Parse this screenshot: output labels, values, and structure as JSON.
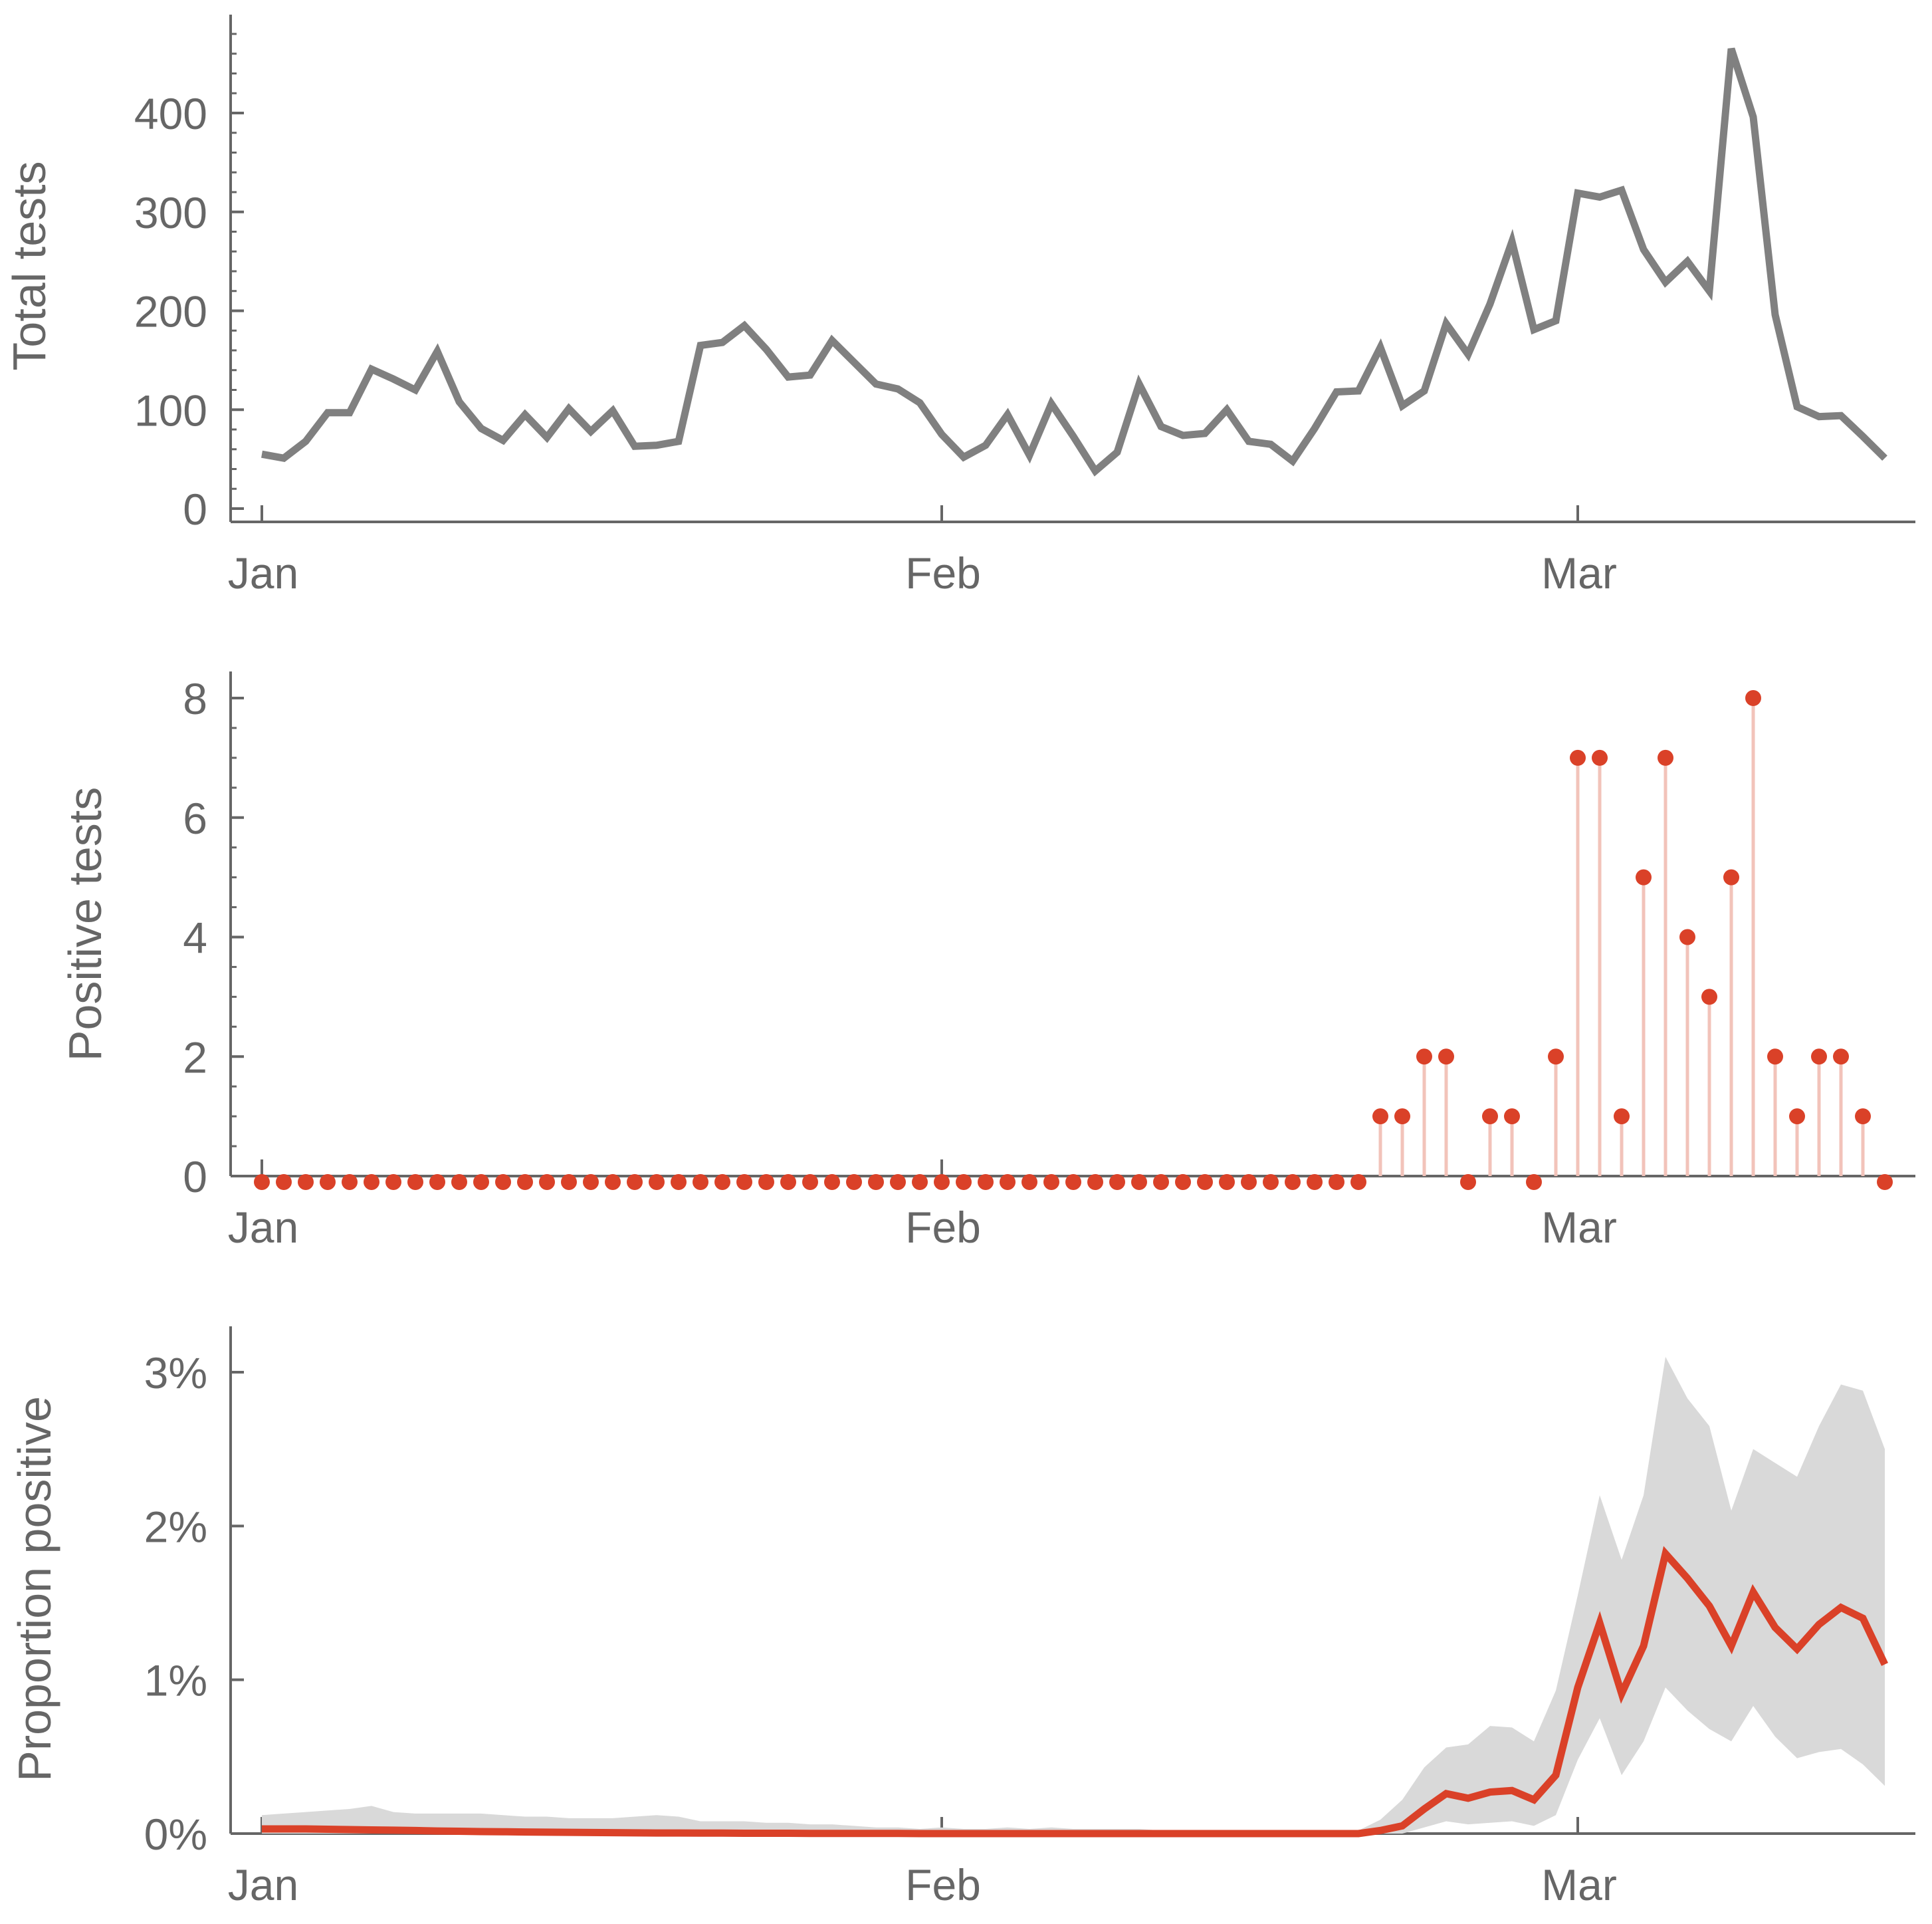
{
  "style": {
    "axis_color": "#666666",
    "total_line_color": "#808080",
    "positive_color": "#DA4128",
    "stem_color": "#F2C3BA",
    "band_color": "#D9D9D9",
    "proportion_line_color": "#DA4128"
  },
  "chart_data": [
    {
      "type": "line",
      "title": "",
      "xlabel": "",
      "ylabel": "Total tests",
      "x_ticks": [
        "Jan",
        "Feb",
        "Mar"
      ],
      "x_tick_days": [
        0,
        31,
        60
      ],
      "y_ticks": [
        "0",
        "100",
        "200",
        "300",
        "400"
      ],
      "y_tick_values": [
        0,
        100,
        200,
        300,
        400
      ],
      "ylim": [
        0,
        500
      ],
      "xlim_days": [
        0,
        74
      ],
      "series": [
        {
          "x_days": [
            0,
            1,
            2,
            3,
            4,
            5,
            6,
            7,
            8,
            9,
            10,
            11,
            12,
            13,
            14,
            15,
            16,
            17,
            18,
            19,
            20,
            21,
            22,
            23,
            24,
            25,
            26,
            27,
            28,
            29,
            30,
            31,
            32,
            33,
            34,
            35,
            36,
            37,
            38,
            39,
            40,
            41,
            42,
            43,
            44,
            45,
            46,
            47,
            48,
            49,
            50,
            51,
            52,
            53,
            54,
            55,
            56,
            57,
            58,
            59,
            60,
            61,
            62,
            63,
            64,
            65,
            66,
            67,
            68,
            69,
            70,
            71,
            72,
            73,
            74
          ],
          "values": [
            55,
            51,
            68,
            97,
            97,
            141,
            131,
            120,
            159,
            108,
            81,
            69,
            95,
            72,
            101,
            78,
            99,
            63,
            64,
            68,
            165,
            168,
            185,
            161,
            133,
            135,
            170,
            148,
            126,
            121,
            107,
            75,
            52,
            64,
            95,
            54,
            106,
            73,
            38,
            57,
            126,
            83,
            74,
            76,
            100,
            68,
            65,
            48,
            81,
            118,
            119,
            163,
            104,
            119,
            187,
            156,
            207,
            270,
            181,
            190,
            319,
            315,
            322,
            262,
            229,
            250,
            220,
            465,
            396,
            196,
            103,
            93,
            94,
            73,
            51
          ]
        }
      ]
    },
    {
      "type": "scatter",
      "title": "",
      "xlabel": "",
      "ylabel": "Positive tests",
      "x_ticks": [
        "Jan",
        "Feb",
        "Mar"
      ],
      "x_tick_days": [
        0,
        31,
        60
      ],
      "y_ticks": [
        "0",
        "2",
        "4",
        "6",
        "8"
      ],
      "y_tick_values": [
        0,
        2,
        4,
        6,
        8
      ],
      "ylim": [
        0,
        8.5
      ],
      "xlim_days": [
        0,
        74
      ],
      "series": [
        {
          "x_days": [
            0,
            1,
            2,
            3,
            4,
            5,
            6,
            7,
            8,
            9,
            10,
            11,
            12,
            13,
            14,
            15,
            16,
            17,
            18,
            19,
            20,
            21,
            22,
            23,
            24,
            25,
            26,
            27,
            28,
            29,
            30,
            31,
            32,
            33,
            34,
            35,
            36,
            37,
            38,
            39,
            40,
            41,
            42,
            43,
            44,
            45,
            46,
            47,
            48,
            49,
            50,
            51,
            52,
            53,
            54,
            55,
            56,
            57,
            58,
            59,
            60,
            61,
            62,
            63,
            64,
            65,
            66,
            67,
            68,
            69,
            70,
            71,
            72,
            73,
            74
          ],
          "values": [
            0,
            0,
            0,
            0,
            0,
            0,
            0,
            0,
            0,
            0,
            0,
            0,
            0,
            0,
            0,
            0,
            0,
            0,
            0,
            0,
            0,
            0,
            0,
            0,
            0,
            0,
            0,
            0,
            0,
            0,
            0,
            0,
            0,
            0,
            0,
            0,
            0,
            0,
            0,
            0,
            0,
            0,
            0,
            0,
            0,
            0,
            0,
            0,
            0,
            0,
            0,
            1,
            1,
            2,
            2,
            0,
            1,
            1,
            0,
            2,
            7,
            7,
            1,
            5,
            7,
            4,
            3,
            5,
            8,
            2,
            1,
            2,
            2,
            1,
            0
          ]
        }
      ]
    },
    {
      "type": "area",
      "title": "",
      "xlabel": "",
      "ylabel": "Proportion positive",
      "x_ticks": [
        "Jan",
        "Feb",
        "Mar"
      ],
      "x_tick_days": [
        0,
        31,
        60
      ],
      "y_ticks": [
        "0%",
        "1%",
        "2%",
        "3%"
      ],
      "y_tick_values": [
        0,
        0.01,
        0.02,
        0.03
      ],
      "ylim": [
        0,
        0.033
      ],
      "xlim_days": [
        0,
        74
      ],
      "x_days": [
        0,
        1,
        2,
        3,
        4,
        5,
        6,
        7,
        8,
        9,
        10,
        11,
        12,
        13,
        14,
        15,
        16,
        17,
        18,
        19,
        20,
        21,
        22,
        23,
        24,
        25,
        26,
        27,
        28,
        29,
        30,
        31,
        32,
        33,
        34,
        35,
        36,
        37,
        38,
        39,
        40,
        41,
        42,
        43,
        44,
        45,
        46,
        47,
        48,
        49,
        50,
        51,
        52,
        53,
        54,
        55,
        56,
        57,
        58,
        59,
        60,
        61,
        62,
        63,
        64,
        65,
        66,
        67,
        68,
        69,
        70,
        71,
        72,
        73,
        74
      ],
      "series": [
        {
          "name": "",
          "estimate": [
            0.0003,
            0.0003,
            0.0003,
            0.00028,
            0.00026,
            0.00024,
            0.00022,
            0.0002,
            0.00017,
            0.00015,
            0.00013,
            0.00012,
            0.0001,
            9e-05,
            8e-05,
            7e-05,
            6e-05,
            5e-05,
            4e-05,
            4e-05,
            3e-05,
            3e-05,
            2e-05,
            2e-05,
            2e-05,
            1e-05,
            1e-05,
            1e-05,
            1e-05,
            1e-05,
            0,
            0,
            0,
            0,
            0,
            0,
            0,
            0,
            0,
            0,
            0,
            0,
            0,
            0,
            0,
            0,
            0,
            0,
            0,
            0,
            0,
            0.0002,
            0.0005,
            0.0016,
            0.0026,
            0.0023,
            0.0027,
            0.0028,
            0.0022,
            0.0038,
            0.0095,
            0.0137,
            0.0091,
            0.0122,
            0.0182,
            0.0166,
            0.0148,
            0.0122,
            0.0157,
            0.0134,
            0.012,
            0.0136,
            0.0147,
            0.014,
            0.011
          ],
          "lower": [
            0,
            0,
            0,
            0,
            0,
            0,
            0,
            0,
            0,
            0,
            0,
            0,
            0,
            0,
            0,
            0,
            0,
            0,
            0,
            0,
            0,
            0,
            0,
            0,
            0,
            0,
            0,
            0,
            0,
            0,
            0,
            0,
            0,
            0,
            0,
            0,
            0,
            0,
            0,
            0,
            0,
            0,
            0,
            0,
            0,
            0,
            0,
            0,
            0,
            0,
            0,
            0,
            0,
            0.0004,
            0.0008,
            0.0006,
            0.0007,
            0.0008,
            0.0005,
            0.0012,
            0.0048,
            0.0075,
            0.0038,
            0.006,
            0.0095,
            0.008,
            0.0068,
            0.006,
            0.0083,
            0.0063,
            0.0049,
            0.0053,
            0.0055,
            0.0045,
            0.0031
          ],
          "upper": [
            0.0012,
            0.0013,
            0.0014,
            0.0015,
            0.0016,
            0.0018,
            0.0014,
            0.0013,
            0.0013,
            0.0013,
            0.0013,
            0.0012,
            0.0011,
            0.0011,
            0.001,
            0.001,
            0.001,
            0.0011,
            0.0012,
            0.0011,
            0.0008,
            0.0008,
            0.0008,
            0.0007,
            0.0007,
            0.0006,
            0.0006,
            0.0005,
            0.0004,
            0.0004,
            0.0003,
            0.0004,
            0.0003,
            0.0003,
            0.0004,
            0.0003,
            0.0004,
            0.0003,
            0.0003,
            0.0003,
            0.0003,
            0.0002,
            0.0002,
            0.0002,
            0.0002,
            0.0002,
            0.0002,
            0.0002,
            0.0002,
            0.0002,
            0.0002,
            0.0009,
            0.0022,
            0.0043,
            0.0056,
            0.0058,
            0.007,
            0.0069,
            0.006,
            0.0093,
            0.0155,
            0.022,
            0.0178,
            0.022,
            0.031,
            0.0283,
            0.0265,
            0.021,
            0.025,
            0.0241,
            0.0232,
            0.0265,
            0.0292,
            0.0288,
            0.025
          ]
        }
      ]
    }
  ]
}
